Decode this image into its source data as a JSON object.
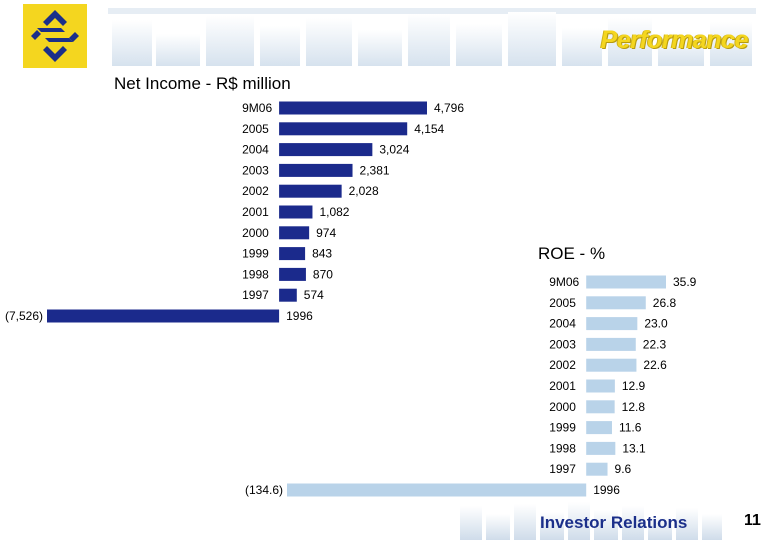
{
  "header": {
    "title": "Performance"
  },
  "footer": {
    "section": "Investor Relations",
    "page_number": "11"
  },
  "colors": {
    "net_income_bar": "#1b2a8c",
    "roe_bar": "#b9d3e9",
    "brand_yellow": "#f4d61f",
    "brand_blue": "#1b2f8a"
  },
  "chart_data": [
    {
      "type": "bar",
      "orientation": "horizontal",
      "title": "Net Income - R$ million",
      "categories": [
        "9M06",
        "2005",
        "2004",
        "2003",
        "2002",
        "2001",
        "2000",
        "1999",
        "1998",
        "1997",
        "1996"
      ],
      "values": [
        4796,
        4154,
        3024,
        2381,
        2028,
        1082,
        974,
        843,
        870,
        574,
        -7526
      ],
      "value_labels": [
        "4,796",
        "4,154",
        "3,024",
        "2,381",
        "2,028",
        "1,082",
        "974",
        "843",
        "870",
        "574",
        "(7,526)"
      ],
      "xlim": [
        -7526,
        4796
      ],
      "grid": false,
      "legend": "none"
    },
    {
      "type": "bar",
      "orientation": "horizontal",
      "title": "ROE - %",
      "categories": [
        "9M06",
        "2005",
        "2004",
        "2003",
        "2002",
        "2001",
        "2000",
        "1999",
        "1998",
        "1997",
        "1996"
      ],
      "values": [
        35.9,
        26.8,
        23.0,
        22.3,
        22.6,
        12.9,
        12.8,
        11.6,
        13.1,
        9.6,
        -134.6
      ],
      "value_labels": [
        "35.9",
        "26.8",
        "23.0",
        "22.3",
        "22.6",
        "12.9",
        "12.8",
        "11.6",
        "13.1",
        "9.6",
        "(134.6)"
      ],
      "xlim": [
        -134.6,
        35.9
      ],
      "grid": false,
      "legend": "none"
    }
  ]
}
